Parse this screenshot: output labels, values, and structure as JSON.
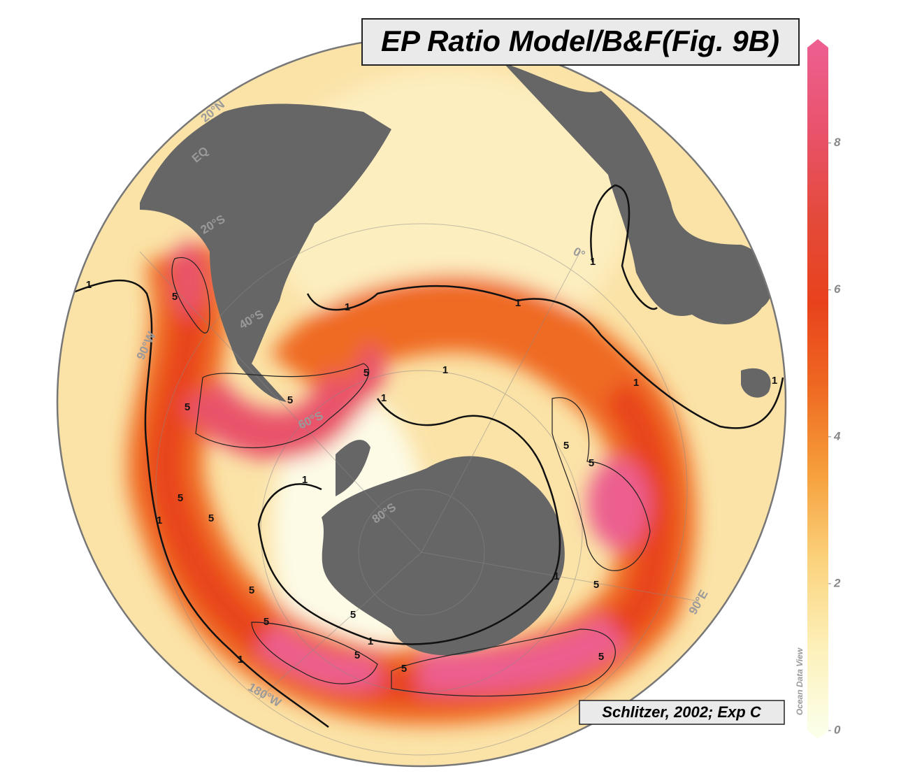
{
  "title": "EP Ratio Model/B&F(Fig. 9B)",
  "credit": "Schlitzer, 2002; Exp C",
  "watermark": "Ocean Data View",
  "colorbar": {
    "lim": [
      0,
      9.3
    ],
    "ticks": [
      0,
      2,
      4,
      6,
      8
    ],
    "colors": [
      "#fbffe8",
      "#fdf0b8",
      "#fbd27c",
      "#f6a03c",
      "#ef6a22",
      "#e8421c",
      "#e44a3a",
      "#e9526a",
      "#ec5f8f"
    ]
  },
  "graticule_labels": [
    "20°N",
    "EQ",
    "20°S",
    "40°S",
    "60°S",
    "80°S",
    "90°W",
    "0°",
    "90°E",
    "180°W"
  ],
  "contour_labels": [
    1,
    1,
    1,
    1,
    1,
    1,
    1,
    1,
    1,
    1,
    1,
    1,
    1,
    5,
    5,
    5,
    5,
    5,
    5,
    5,
    5,
    5,
    5,
    5,
    5,
    5,
    5,
    5
  ]
}
